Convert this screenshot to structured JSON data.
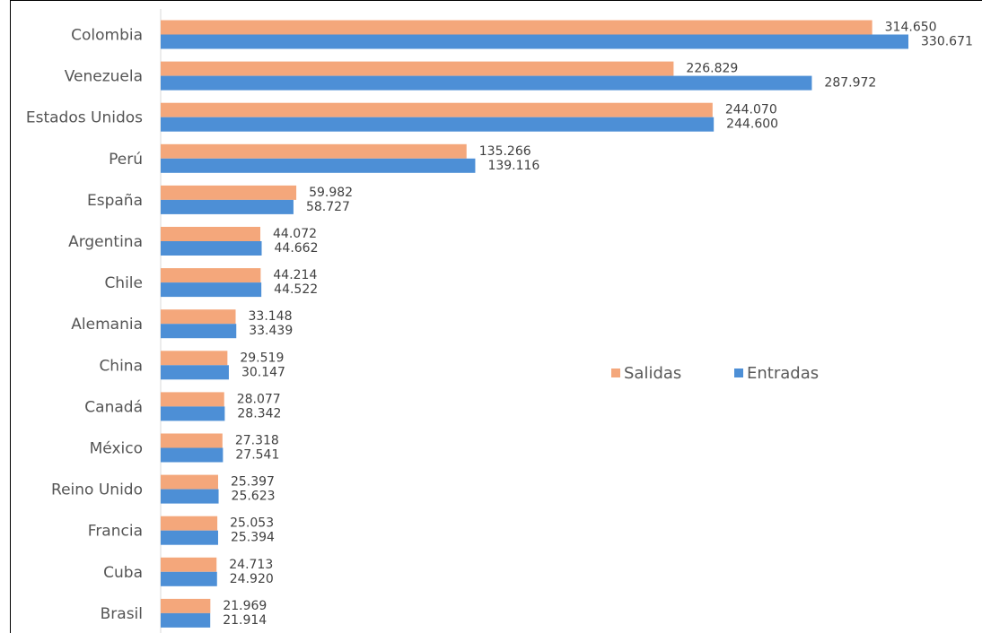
{
  "chart_data": {
    "type": "bar",
    "orientation": "horizontal",
    "categories": [
      "Colombia",
      "Venezuela",
      "Estados Unidos",
      "Perú",
      "España",
      "Argentina",
      "Chile",
      "Alemania",
      "China",
      "Canadá",
      "México",
      "Reino Unido",
      "Francia",
      "Cuba",
      "Brasil"
    ],
    "series": [
      {
        "name": "Salidas",
        "color": "#F4A77B",
        "values": [
          314650,
          226829,
          244070,
          135266,
          59982,
          44072,
          44214,
          33148,
          29519,
          28077,
          27318,
          25397,
          25053,
          24713,
          21969
        ],
        "labels": [
          "314.650",
          "226.829",
          "244.070",
          "135.266",
          "59.982",
          "44.072",
          "44.214",
          "33.148",
          "29.519",
          "28.077",
          "27.318",
          "25.397",
          "25.053",
          "24.713",
          "21.969"
        ]
      },
      {
        "name": "Entradas",
        "color": "#4D8FD6",
        "values": [
          330671,
          287972,
          244600,
          139116,
          58727,
          44662,
          44522,
          33439,
          30147,
          28342,
          27541,
          25623,
          25394,
          24920,
          21914
        ],
        "labels": [
          "330.671",
          "287.972",
          "244.600",
          "139.116",
          "58.727",
          "44.662",
          "44.522",
          "33.439",
          "30.147",
          "28.342",
          "27.541",
          "25.623",
          "25.394",
          "24.920",
          "21.914"
        ]
      }
    ],
    "legend_position": "right-middle",
    "grid": false
  }
}
